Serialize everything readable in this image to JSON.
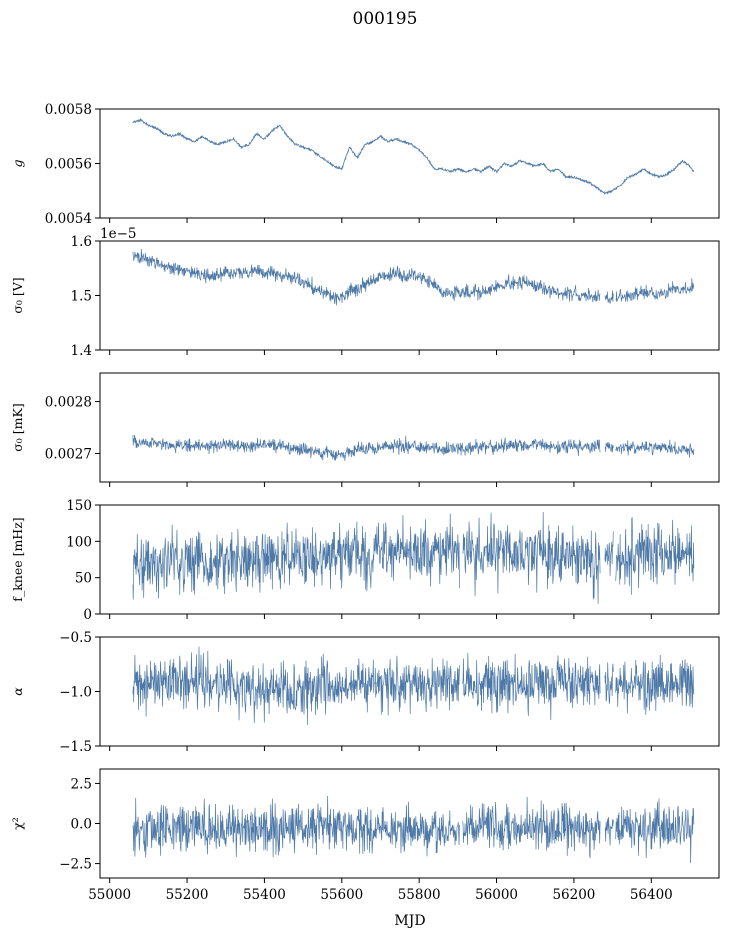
{
  "figure": {
    "title": "000195"
  },
  "series_color": "#4e79a7",
  "chart_data": [
    {
      "type": "line",
      "ylabel": "g",
      "ylabel_math": "g",
      "ylim": [
        0.0054,
        0.0058
      ],
      "yticks": [
        0.0054,
        0.0056,
        0.0058
      ],
      "ytick_labels": [
        "0.0054",
        "0.0056",
        "0.0058"
      ],
      "xlim": [
        54975,
        56575
      ],
      "x_range": [
        55060,
        56510
      ],
      "points": [
        [
          55060,
          0.00575
        ],
        [
          55080,
          0.00576
        ],
        [
          55100,
          0.00574
        ],
        [
          55120,
          0.00573
        ],
        [
          55140,
          0.00571
        ],
        [
          55160,
          0.0057
        ],
        [
          55180,
          0.00571
        ],
        [
          55200,
          0.00569
        ],
        [
          55220,
          0.00568
        ],
        [
          55240,
          0.0057
        ],
        [
          55260,
          0.00568
        ],
        [
          55280,
          0.00567
        ],
        [
          55300,
          0.00568
        ],
        [
          55320,
          0.00569
        ],
        [
          55340,
          0.00566
        ],
        [
          55360,
          0.00567
        ],
        [
          55380,
          0.00571
        ],
        [
          55400,
          0.00569
        ],
        [
          55420,
          0.00572
        ],
        [
          55440,
          0.00574
        ],
        [
          55460,
          0.0057
        ],
        [
          55480,
          0.00567
        ],
        [
          55500,
          0.00566
        ],
        [
          55520,
          0.00565
        ],
        [
          55540,
          0.00563
        ],
        [
          55560,
          0.00561
        ],
        [
          55580,
          0.00559
        ],
        [
          55600,
          0.00558
        ],
        [
          55620,
          0.00566
        ],
        [
          55640,
          0.00562
        ],
        [
          55660,
          0.00567
        ],
        [
          55680,
          0.00568
        ],
        [
          55700,
          0.0057
        ],
        [
          55720,
          0.00568
        ],
        [
          55740,
          0.00569
        ],
        [
          55760,
          0.00568
        ],
        [
          55780,
          0.00567
        ],
        [
          55800,
          0.00565
        ],
        [
          55820,
          0.00562
        ],
        [
          55840,
          0.00558
        ],
        [
          55860,
          0.00558
        ],
        [
          55880,
          0.00557
        ],
        [
          55900,
          0.00558
        ],
        [
          55920,
          0.00557
        ],
        [
          55940,
          0.00558
        ],
        [
          55960,
          0.00557
        ],
        [
          55980,
          0.00559
        ],
        [
          56000,
          0.00557
        ],
        [
          56020,
          0.0056
        ],
        [
          56040,
          0.00559
        ],
        [
          56060,
          0.00561
        ],
        [
          56080,
          0.0056
        ],
        [
          56100,
          0.00559
        ],
        [
          56120,
          0.0056
        ],
        [
          56140,
          0.00557
        ],
        [
          56160,
          0.00558
        ],
        [
          56180,
          0.00555
        ],
        [
          56200,
          0.00555
        ],
        [
          56220,
          0.00554
        ],
        [
          56240,
          0.00553
        ],
        [
          56260,
          0.00551
        ],
        [
          56280,
          0.00549
        ],
        [
          56300,
          0.0055
        ],
        [
          56320,
          0.00552
        ],
        [
          56340,
          0.00555
        ],
        [
          56360,
          0.00556
        ],
        [
          56380,
          0.00558
        ],
        [
          56400,
          0.00556
        ],
        [
          56420,
          0.00555
        ],
        [
          56440,
          0.00556
        ],
        [
          56460,
          0.00558
        ],
        [
          56480,
          0.00561
        ],
        [
          56500,
          0.00559
        ],
        [
          56510,
          0.00557
        ]
      ],
      "noise_amplitude": 4e-06,
      "gaps": []
    },
    {
      "type": "line",
      "ylabel": "σ₀ [V]",
      "offset_text": "1e−5",
      "ylim": [
        1.4,
        1.6
      ],
      "yticks": [
        1.4,
        1.5,
        1.6
      ],
      "ytick_labels": [
        "1.4",
        "1.5",
        "1.6"
      ],
      "xlim": [
        54975,
        56575
      ],
      "x_range": [
        55060,
        56510
      ],
      "points": [
        [
          55060,
          1.575
        ],
        [
          55100,
          1.565
        ],
        [
          55140,
          1.555
        ],
        [
          55180,
          1.545
        ],
        [
          55220,
          1.54
        ],
        [
          55260,
          1.535
        ],
        [
          55300,
          1.54
        ],
        [
          55340,
          1.54
        ],
        [
          55380,
          1.545
        ],
        [
          55420,
          1.54
        ],
        [
          55460,
          1.535
        ],
        [
          55500,
          1.525
        ],
        [
          55540,
          1.51
        ],
        [
          55580,
          1.495
        ],
        [
          55620,
          1.505
        ],
        [
          55660,
          1.52
        ],
        [
          55700,
          1.535
        ],
        [
          55740,
          1.54
        ],
        [
          55780,
          1.535
        ],
        [
          55820,
          1.53
        ],
        [
          55860,
          1.505
        ],
        [
          55900,
          1.505
        ],
        [
          55940,
          1.505
        ],
        [
          55980,
          1.51
        ],
        [
          56020,
          1.52
        ],
        [
          56060,
          1.525
        ],
        [
          56100,
          1.52
        ],
        [
          56140,
          1.51
        ],
        [
          56180,
          1.505
        ],
        [
          56220,
          1.5
        ],
        [
          56260,
          1.5
        ],
        [
          56300,
          1.495
        ],
        [
          56340,
          1.5
        ],
        [
          56380,
          1.505
        ],
        [
          56420,
          1.5
        ],
        [
          56460,
          1.51
        ],
        [
          56510,
          1.515
        ]
      ],
      "noise_amplitude": 0.011,
      "gaps": [
        [
          56268,
          56280
        ],
        [
          56302,
          56308
        ]
      ]
    },
    {
      "type": "line",
      "ylabel": "σ₀ [mK]",
      "ylim": [
        0.002645,
        0.002855
      ],
      "yticks": [
        0.0027,
        0.0028
      ],
      "ytick_labels": [
        "0.0027",
        "0.0028"
      ],
      "xlim": [
        54975,
        56575
      ],
      "x_range": [
        55060,
        56510
      ],
      "points": [
        [
          55060,
          0.002722
        ],
        [
          55120,
          0.002718
        ],
        [
          55180,
          0.002715
        ],
        [
          55240,
          0.002712
        ],
        [
          55300,
          0.002717
        ],
        [
          55360,
          0.002715
        ],
        [
          55420,
          0.002716
        ],
        [
          55480,
          0.00271
        ],
        [
          55540,
          0.002703
        ],
        [
          55600,
          0.002695
        ],
        [
          55640,
          0.002705
        ],
        [
          55700,
          0.002712
        ],
        [
          55760,
          0.002714
        ],
        [
          55820,
          0.002712
        ],
        [
          55860,
          0.002708
        ],
        [
          55920,
          0.00271
        ],
        [
          55980,
          0.002712
        ],
        [
          56040,
          0.002716
        ],
        [
          56100,
          0.002717
        ],
        [
          56160,
          0.002712
        ],
        [
          56220,
          0.002712
        ],
        [
          56280,
          0.002712
        ],
        [
          56340,
          0.002713
        ],
        [
          56400,
          0.00271
        ],
        [
          56460,
          0.002707
        ],
        [
          56510,
          0.002705
        ]
      ],
      "noise_amplitude": 1.1e-05,
      "gaps": [
        [
          56268,
          56280
        ],
        [
          56302,
          56308
        ]
      ]
    },
    {
      "type": "line",
      "ylabel": "f_knee [mHz]",
      "ylim": [
        0,
        150
      ],
      "yticks": [
        0,
        50,
        100,
        150
      ],
      "ytick_labels": [
        "0",
        "50",
        "100",
        "150"
      ],
      "xlim": [
        54975,
        56575
      ],
      "x_range": [
        55060,
        56510
      ],
      "points": [
        [
          55060,
          70
        ],
        [
          55160,
          70
        ],
        [
          55260,
          72
        ],
        [
          55360,
          76
        ],
        [
          55460,
          80
        ],
        [
          55560,
          80
        ],
        [
          55620,
          85
        ],
        [
          55700,
          85
        ],
        [
          55800,
          85
        ],
        [
          55900,
          85
        ],
        [
          56000,
          85
        ],
        [
          56100,
          85
        ],
        [
          56180,
          80
        ],
        [
          56260,
          72
        ],
        [
          56300,
          75
        ],
        [
          56400,
          85
        ],
        [
          56510,
          82
        ]
      ],
      "noise_amplitude": 34,
      "gaps": [
        [
          55905,
          55912
        ],
        [
          56268,
          56280
        ],
        [
          56302,
          56308
        ]
      ]
    },
    {
      "type": "line",
      "ylabel": "α",
      "ylim": [
        -1.5,
        -0.5
      ],
      "yticks": [
        -1.5,
        -1.0,
        -0.5
      ],
      "ytick_labels": [
        "−1.5",
        "−1.0",
        "−0.5"
      ],
      "xlim": [
        54975,
        56575
      ],
      "x_range": [
        55060,
        56510
      ],
      "points": [
        [
          55060,
          -0.92
        ],
        [
          55160,
          -0.9
        ],
        [
          55260,
          -0.92
        ],
        [
          55360,
          -0.96
        ],
        [
          55460,
          -0.97
        ],
        [
          55560,
          -0.95
        ],
        [
          55660,
          -0.93
        ],
        [
          55760,
          -0.93
        ],
        [
          55860,
          -0.96
        ],
        [
          55960,
          -0.93
        ],
        [
          56060,
          -0.93
        ],
        [
          56160,
          -0.9
        ],
        [
          56260,
          -0.93
        ],
        [
          56360,
          -0.93
        ],
        [
          56460,
          -0.93
        ],
        [
          56510,
          -0.93
        ]
      ],
      "noise_amplitude": 0.2,
      "gaps": [
        [
          55905,
          55912
        ],
        [
          56268,
          56280
        ],
        [
          56302,
          56308
        ]
      ]
    },
    {
      "type": "line",
      "ylabel": "χ²",
      "ylim": [
        -3.4,
        3.4
      ],
      "yticks": [
        -2.5,
        0.0,
        2.5
      ],
      "ytick_labels": [
        "−2.5",
        "0.0",
        "2.5"
      ],
      "xlim": [
        54975,
        56575
      ],
      "x_range": [
        55060,
        56510
      ],
      "points": [
        [
          55060,
          -0.3
        ],
        [
          55260,
          -0.3
        ],
        [
          55460,
          -0.3
        ],
        [
          55660,
          -0.3
        ],
        [
          55860,
          -0.3
        ],
        [
          56060,
          -0.3
        ],
        [
          56260,
          -0.3
        ],
        [
          56510,
          -0.3
        ]
      ],
      "noise_amplitude": 1.2,
      "gaps": [
        [
          55905,
          55912
        ],
        [
          56268,
          56280
        ],
        [
          56302,
          56308
        ]
      ]
    }
  ],
  "xaxis": {
    "label": "MJD",
    "ticks": [
      55000,
      55200,
      55400,
      55600,
      55800,
      56000,
      56200,
      56400
    ],
    "tick_labels": [
      "55000",
      "55200",
      "55400",
      "55600",
      "55800",
      "56000",
      "56200",
      "56400"
    ]
  }
}
